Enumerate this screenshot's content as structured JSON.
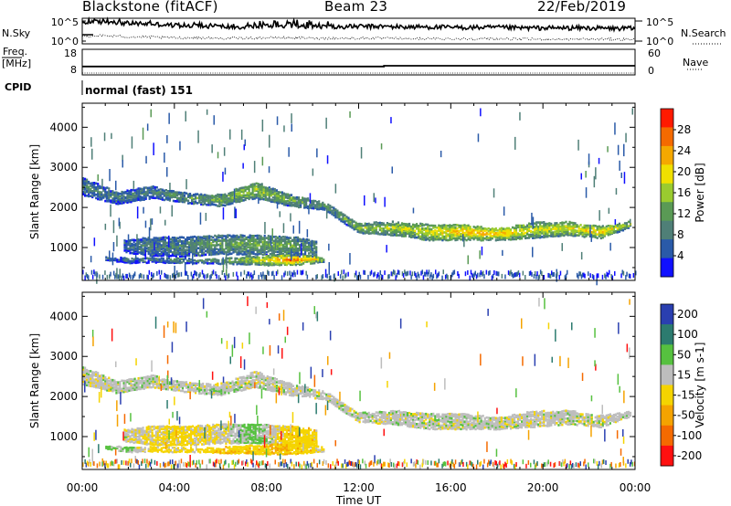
{
  "header": {
    "station": "Blackstone (fitACF)",
    "beam": "Beam 23",
    "date": "22/Feb/2019"
  },
  "sidebar": {
    "nsky_label": "N.Sky",
    "nsearch_label": "N.Search",
    "freq_label": "Freq.",
    "freq_unit": "[MHz]",
    "nave_label": "Nave",
    "cpid_label": "CPID",
    "cpid_value": "normal (fast) 151"
  },
  "colors": {
    "power_scale": [
      "#1010ff",
      "#2a5aa8",
      "#4f7f77",
      "#5a9a55",
      "#9acb2f",
      "#f0e000",
      "#f5a800",
      "#f56a00",
      "#ff1a00"
    ],
    "velocity_scale": [
      "#2a3fb0",
      "#2c7b6f",
      "#56c13f",
      "#bdbdbd",
      "#f5d400",
      "#f5a300",
      "#f56a00",
      "#ff1010"
    ]
  },
  "chart_data": [
    {
      "type": "line",
      "panel": "noise",
      "left_ticks": [
        "10^5",
        "10^0"
      ],
      "right_ticks": [
        "10^5",
        "10^0"
      ],
      "series": [
        {
          "name": "N.Sky",
          "style": "solid",
          "x": [
            0,
            1,
            2,
            3,
            4,
            5,
            6,
            7,
            8,
            9,
            10,
            11,
            12,
            13,
            14,
            15,
            16,
            17,
            18,
            19,
            20,
            21,
            22,
            23,
            24
          ],
          "y_fraction": [
            0.82,
            0.86,
            0.8,
            0.78,
            0.72,
            0.7,
            0.68,
            0.66,
            0.7,
            0.72,
            0.68,
            0.66,
            0.68,
            0.68,
            0.66,
            0.66,
            0.64,
            0.64,
            0.64,
            0.62,
            0.62,
            0.62,
            0.62,
            0.6,
            0.6
          ]
        },
        {
          "name": "N.Search",
          "style": "dotted",
          "x": [
            0,
            1,
            2,
            3,
            4,
            5,
            6,
            7,
            8,
            9,
            10,
            11,
            12,
            13,
            14,
            15,
            16,
            17,
            18,
            19,
            20,
            21,
            22,
            23,
            24
          ],
          "y_fraction": [
            0.3,
            0.32,
            0.28,
            0.26,
            0.24,
            0.24,
            0.22,
            0.22,
            0.24,
            0.24,
            0.22,
            0.22,
            0.22,
            0.22,
            0.2,
            0.2,
            0.2,
            0.2,
            0.2,
            0.18,
            0.18,
            0.18,
            0.18,
            0.18,
            0.18
          ]
        }
      ]
    },
    {
      "type": "line",
      "panel": "frequency",
      "left_ticks": [
        "18",
        "8"
      ],
      "right_ticks": [
        "60",
        "0"
      ],
      "series": [
        {
          "name": "Freq.",
          "style": "solid",
          "x": [
            0,
            13.1,
            13.1,
            24
          ],
          "y": [
            10.6,
            10.6,
            11.0,
            11.0
          ]
        },
        {
          "name": "Nave",
          "style": "dotted",
          "x": [
            0,
            24
          ],
          "y": [
            0,
            0
          ]
        }
      ]
    },
    {
      "type": "heatmap",
      "panel": "power",
      "ylabel": "Slant Range [km]",
      "ylim": [
        180,
        4600
      ],
      "yticks": [
        "1000",
        "2000",
        "3000",
        "4000"
      ],
      "xlim": [
        0,
        24
      ],
      "colorbar_label": "Power [dB]",
      "colorbar_ticks": [
        "4",
        "8",
        "12",
        "16",
        "20",
        "24",
        "28"
      ],
      "colorbar_range": [
        0,
        32
      ],
      "bands": [
        {
          "t": [
            0,
            1.5,
            3,
            4.5,
            6,
            7.5,
            9,
            10.5,
            12,
            13.5,
            15,
            16.5,
            18,
            19.5,
            21,
            22.5,
            23.8
          ],
          "center_km": [
            2550,
            2250,
            2400,
            2250,
            2200,
            2450,
            2200,
            2050,
            1500,
            1500,
            1400,
            1400,
            1350,
            1450,
            1500,
            1400,
            1600
          ],
          "width_km": [
            450,
            300,
            300,
            250,
            300,
            400,
            300,
            200,
            250,
            350,
            400,
            400,
            300,
            400,
            350,
            300,
            150
          ],
          "db": [
            8,
            8,
            8,
            10,
            12,
            15,
            12,
            9,
            13,
            15,
            17,
            20,
            20,
            16,
            17,
            19,
            14
          ]
        },
        {
          "t": [
            1.8,
            3,
            4.5,
            6,
            7.5,
            9,
            10.2
          ],
          "center_km": [
            1050,
            1050,
            1050,
            1100,
            1100,
            1050,
            1000
          ],
          "width_km": [
            300,
            500,
            500,
            500,
            500,
            500,
            400
          ],
          "db": [
            6,
            8,
            9,
            11,
            12,
            12,
            9
          ]
        },
        {
          "t": [
            1,
            2,
            3,
            4,
            5,
            6,
            7,
            8,
            9,
            10,
            10.5
          ],
          "center_km": [
            750,
            700,
            720,
            700,
            680,
            680,
            700,
            700,
            700,
            720,
            700
          ],
          "width_km": [
            80,
            150,
            150,
            150,
            100,
            150,
            200,
            250,
            250,
            200,
            100
          ],
          "db": [
            6,
            6,
            7,
            8,
            9,
            11,
            14,
            18,
            24,
            18,
            12
          ]
        }
      ]
    },
    {
      "type": "heatmap",
      "panel": "velocity",
      "ylabel": "Slant Range [km]",
      "ylim": [
        180,
        4600
      ],
      "yticks": [
        "1000",
        "2000",
        "3000",
        "4000"
      ],
      "xlim": [
        0,
        24
      ],
      "xticks": [
        "00:00",
        "04:00",
        "08:00",
        "12:00",
        "16:00",
        "20:00",
        "00:00"
      ],
      "xlabel": "Time UT",
      "colorbar_label": "Velocity [m s-1]",
      "colorbar_ticks": [
        "200",
        "100",
        "50",
        "15",
        "-15",
        "-50",
        "-100",
        "-200"
      ],
      "bands": [
        {
          "t": [
            0,
            1.5,
            3,
            4.5,
            6,
            7.5,
            9,
            10.5,
            12,
            13.5,
            15,
            16.5,
            18,
            19.5,
            21,
            22.5,
            23.8
          ],
          "center_km": [
            2550,
            2250,
            2400,
            2250,
            2200,
            2450,
            2200,
            2050,
            1500,
            1500,
            1400,
            1400,
            1350,
            1450,
            1500,
            1400,
            1600
          ],
          "width_km": [
            450,
            300,
            300,
            250,
            300,
            400,
            300,
            200,
            250,
            350,
            400,
            400,
            300,
            400,
            350,
            300,
            150
          ],
          "vel": [
            0,
            0,
            0,
            0,
            0,
            0,
            0,
            0,
            0,
            0,
            0,
            0,
            0,
            0,
            0,
            0,
            0
          ]
        },
        {
          "t": [
            1.8,
            3,
            4.5,
            6,
            7.5,
            9,
            10.2
          ],
          "center_km": [
            1050,
            1050,
            1050,
            1100,
            1100,
            1050,
            1000
          ],
          "width_km": [
            300,
            500,
            500,
            500,
            500,
            500,
            400
          ],
          "vel": [
            0,
            -20,
            -30,
            -10,
            30,
            -40,
            -30
          ]
        },
        {
          "t": [
            1,
            2,
            3,
            4,
            5,
            6,
            7,
            8,
            9,
            10,
            10.5
          ],
          "center_km": [
            750,
            700,
            720,
            700,
            680,
            680,
            700,
            700,
            700,
            720,
            700
          ],
          "width_km": [
            80,
            150,
            150,
            150,
            100,
            150,
            200,
            250,
            250,
            200,
            100
          ],
          "vel": [
            30,
            20,
            -30,
            -30,
            -20,
            -40,
            -40,
            -40,
            -40,
            -30,
            -20
          ]
        }
      ]
    }
  ]
}
